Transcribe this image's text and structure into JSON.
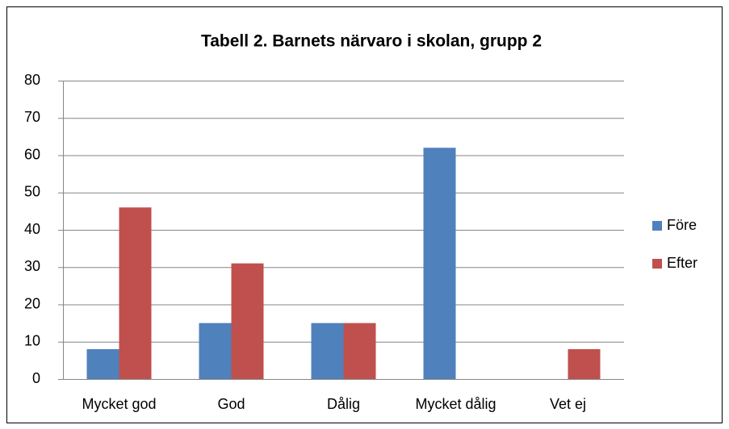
{
  "chart_data": {
    "type": "bar",
    "title": "Tabell 2. Barnets närvaro i skolan, grupp 2",
    "categories": [
      "Mycket god",
      "God",
      "Dålig",
      "Mycket dålig",
      "Vet ej"
    ],
    "series": [
      {
        "name": "Före",
        "color": "#4f81bd",
        "values": [
          8,
          15,
          15,
          62,
          0
        ]
      },
      {
        "name": "Efter",
        "color": "#c0504d",
        "values": [
          46,
          31,
          15,
          0,
          8
        ]
      }
    ],
    "ylim": [
      0,
      80
    ],
    "yticks": [
      0,
      10,
      20,
      30,
      40,
      50,
      60,
      70,
      80
    ],
    "grid": true,
    "legend": "right"
  }
}
